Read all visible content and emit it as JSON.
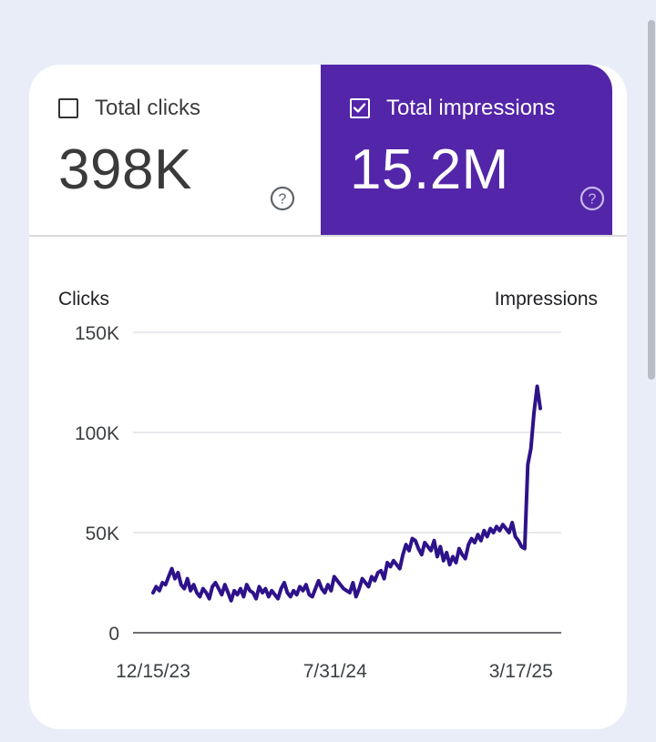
{
  "metrics": {
    "clicks": {
      "label": "Total clicks",
      "value": "398K",
      "checked": false
    },
    "impressions": {
      "label": "Total impressions",
      "value": "15.2M",
      "checked": true
    }
  },
  "colors": {
    "accent": "#5325a8",
    "line": "#2e128a",
    "grid": "#dadce0",
    "background": "#e8edf7"
  },
  "chart_data": {
    "type": "line",
    "left_axis_label": "Clicks",
    "right_axis_label": "Impressions",
    "y_ticks": [
      "150K",
      "100K",
      "50K",
      "0"
    ],
    "y_tick_values": [
      150000,
      100000,
      50000,
      0
    ],
    "ylim": [
      0,
      150000
    ],
    "x_tick_labels": [
      "12/15/23",
      "7/31/24",
      "3/17/25"
    ],
    "x_tick_positions": [
      0,
      0.47,
      0.95
    ],
    "grid": true,
    "series": [
      {
        "values": [
          20000,
          23000,
          21000,
          25000,
          24000,
          28000,
          32000,
          27000,
          30000,
          24000,
          22000,
          27000,
          21000,
          24000,
          20000,
          18000,
          22000,
          20000,
          17000,
          23000,
          25000,
          22000,
          19000,
          24000,
          20000,
          16000,
          21000,
          19000,
          22000,
          18000,
          24000,
          21000,
          20000,
          17000,
          23000,
          20000,
          22000,
          18000,
          21000,
          19000,
          17000,
          22000,
          25000,
          20000,
          18000,
          21000,
          19000,
          23000,
          21000,
          24000,
          19000,
          18000,
          22000,
          26000,
          22000,
          20000,
          24000,
          21000,
          28000,
          26000,
          24000,
          22000,
          21000,
          20000,
          25000,
          18000,
          22000,
          27000,
          25000,
          23000,
          28000,
          26000,
          30000,
          31000,
          27000,
          35000,
          33000,
          36000,
          34000,
          32000,
          39000,
          44000,
          41000,
          47000,
          46000,
          42000,
          39000,
          45000,
          43000,
          41000,
          46000,
          38000,
          43000,
          36000,
          40000,
          34000,
          38000,
          35000,
          42000,
          39000,
          37000,
          44000,
          47000,
          45000,
          49000,
          46000,
          51000,
          48000,
          52000,
          50000,
          53000,
          51000,
          54000,
          52000,
          50000,
          55000,
          48000,
          46000,
          43000,
          42000,
          84000,
          92000,
          110000,
          123000,
          112000
        ]
      }
    ]
  }
}
